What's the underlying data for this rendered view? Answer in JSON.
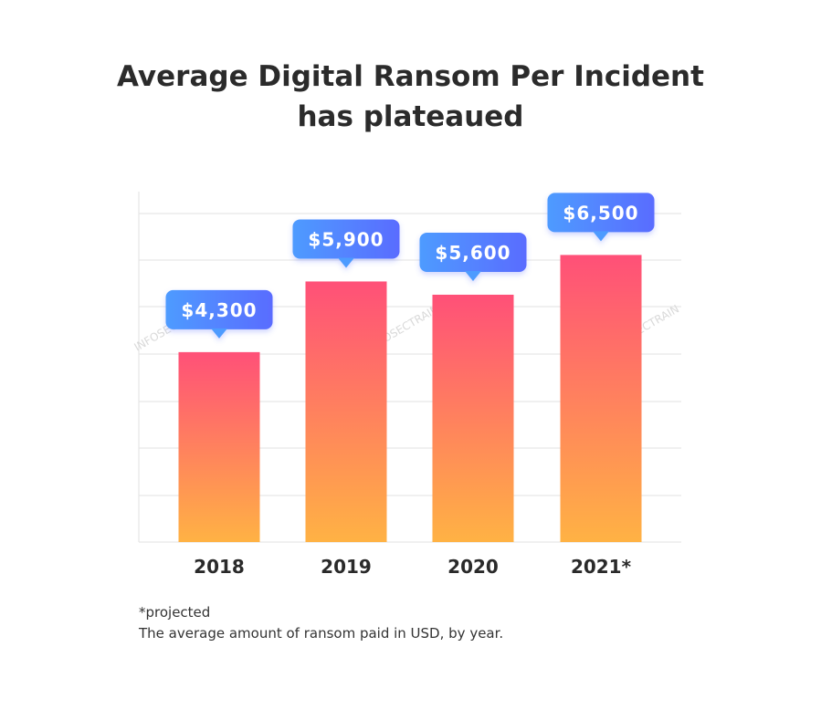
{
  "chart_data": {
    "type": "bar",
    "title": "Average Digital Ransom Per Incident has plateaued",
    "title_lines": [
      "Average Digital Ransom Per Incident",
      "has plateaued"
    ],
    "categories": [
      "2018",
      "2019",
      "2020",
      "2021*"
    ],
    "values": [
      4300,
      5900,
      5600,
      6500
    ],
    "value_labels": [
      "$4,300",
      "$5,900",
      "$5,600",
      "$6,500"
    ],
    "xlabel": "",
    "ylabel": "",
    "ylim": [
      0,
      7000
    ],
    "grid": true,
    "colors": {
      "bar_top": "#ff5078",
      "bar_bottom": "#ffb244",
      "bubble_left": "#4e9bff",
      "bubble_right": "#5a6cff",
      "grid": "#e2e2e2"
    }
  },
  "notes": {
    "footnote": "*projected",
    "caption": "The average amount of ransom paid in USD, by year."
  },
  "watermark": "INFOSECTRAIN"
}
